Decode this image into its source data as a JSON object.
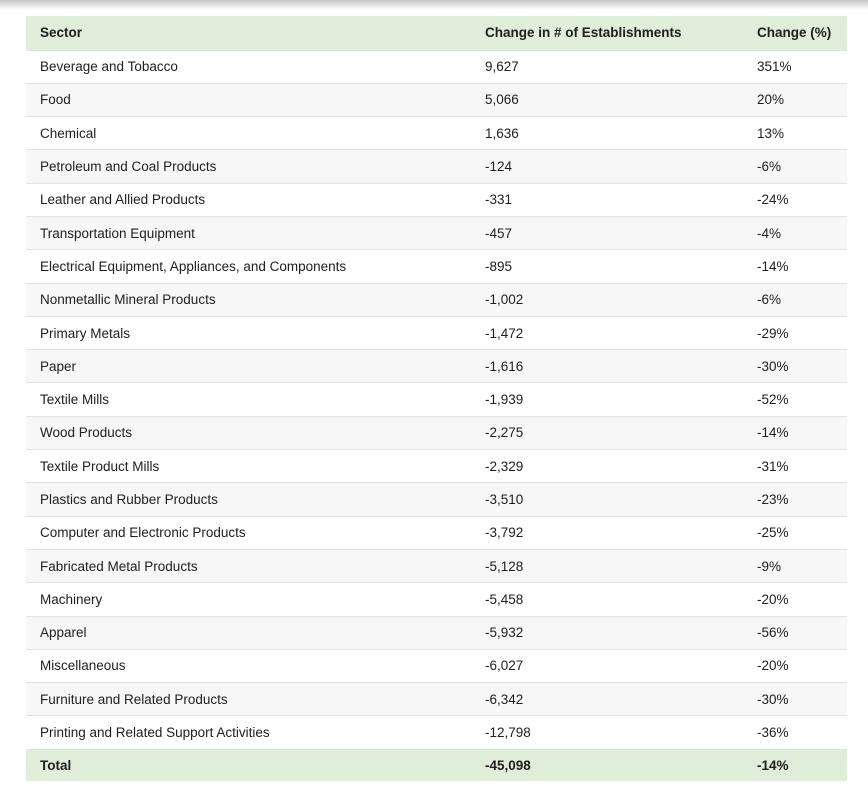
{
  "colors": {
    "header_bg": "#e0edd8",
    "total_bg": "#e0edd8",
    "alt_row_bg": "#f7f7f7",
    "row_border": "#e2e2e2",
    "text": "#202020"
  },
  "table": {
    "headers": [
      "Sector",
      "Change in # of Establishments",
      "Change (%)"
    ],
    "rows": [
      {
        "sector": "Beverage and Tobacco",
        "establishments": "9,627",
        "change": "351%"
      },
      {
        "sector": "Food",
        "establishments": "5,066",
        "change": "20%"
      },
      {
        "sector": "Chemical",
        "establishments": "1,636",
        "change": "13%"
      },
      {
        "sector": "Petroleum and Coal Products",
        "establishments": "-124",
        "change": "-6%"
      },
      {
        "sector": "Leather and Allied Products",
        "establishments": "-331",
        "change": "-24%"
      },
      {
        "sector": "Transportation Equipment",
        "establishments": "-457",
        "change": "-4%"
      },
      {
        "sector": "Electrical Equipment, Appliances, and Components",
        "establishments": "-895",
        "change": "-14%"
      },
      {
        "sector": "Nonmetallic Mineral Products",
        "establishments": "-1,002",
        "change": "-6%"
      },
      {
        "sector": "Primary Metals",
        "establishments": "-1,472",
        "change": "-29%"
      },
      {
        "sector": "Paper",
        "establishments": "-1,616",
        "change": "-30%"
      },
      {
        "sector": "Textile Mills",
        "establishments": "-1,939",
        "change": "-52%"
      },
      {
        "sector": "Wood Products",
        "establishments": "-2,275",
        "change": "-14%"
      },
      {
        "sector": "Textile Product Mills",
        "establishments": "-2,329",
        "change": "-31%"
      },
      {
        "sector": "Plastics and Rubber Products",
        "establishments": "-3,510",
        "change": "-23%"
      },
      {
        "sector": "Computer and Electronic Products",
        "establishments": "-3,792",
        "change": "-25%"
      },
      {
        "sector": "Fabricated Metal Products",
        "establishments": "-5,128",
        "change": "-9%"
      },
      {
        "sector": "Machinery",
        "establishments": "-5,458",
        "change": "-20%"
      },
      {
        "sector": "Apparel",
        "establishments": "-5,932",
        "change": "-56%"
      },
      {
        "sector": "Miscellaneous",
        "establishments": "-6,027",
        "change": "-20%"
      },
      {
        "sector": "Furniture and Related Products",
        "establishments": "-6,342",
        "change": "-30%"
      },
      {
        "sector": "Printing and Related Support Activities",
        "establishments": "-12,798",
        "change": "-36%"
      }
    ],
    "total": {
      "sector": "Total",
      "establishments": "-45,098",
      "change": "-14%"
    }
  },
  "chart_data": {
    "type": "table",
    "title": "",
    "columns": [
      "Sector",
      "Change in # of Establishments",
      "Change (%)"
    ],
    "rows": [
      [
        "Beverage and Tobacco",
        9627,
        351
      ],
      [
        "Food",
        5066,
        20
      ],
      [
        "Chemical",
        1636,
        13
      ],
      [
        "Petroleum and Coal Products",
        -124,
        -6
      ],
      [
        "Leather and Allied Products",
        -331,
        -24
      ],
      [
        "Transportation Equipment",
        -457,
        -4
      ],
      [
        "Electrical Equipment, Appliances, and Components",
        -895,
        -14
      ],
      [
        "Nonmetallic Mineral Products",
        -1002,
        -6
      ],
      [
        "Primary Metals",
        -1472,
        -29
      ],
      [
        "Paper",
        -1616,
        -30
      ],
      [
        "Textile Mills",
        -1939,
        -52
      ],
      [
        "Wood Products",
        -2275,
        -14
      ],
      [
        "Textile Product Mills",
        -2329,
        -31
      ],
      [
        "Plastics and Rubber Products",
        -3510,
        -23
      ],
      [
        "Computer and Electronic Products",
        -3792,
        -25
      ],
      [
        "Fabricated Metal Products",
        -5128,
        -9
      ],
      [
        "Machinery",
        -5458,
        -20
      ],
      [
        "Apparel",
        -5932,
        -56
      ],
      [
        "Miscellaneous",
        -6027,
        -20
      ],
      [
        "Furniture and Related Products",
        -6342,
        -30
      ],
      [
        "Printing and Related Support Activities",
        -12798,
        -36
      ]
    ],
    "total_row": [
      "Total",
      -45098,
      -14
    ]
  }
}
